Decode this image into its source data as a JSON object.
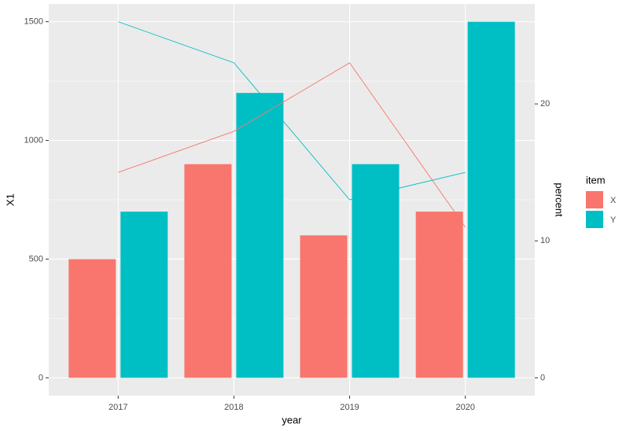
{
  "chart_data": {
    "type": "bar",
    "x_label": "year",
    "y_label": "X1",
    "y2_label": "percent",
    "legend_title": "item",
    "categories": [
      "2017",
      "2018",
      "2019",
      "2020"
    ],
    "series": [
      {
        "name": "X",
        "color": "#F8766D",
        "values": [
          500,
          900,
          600,
          700
        ]
      },
      {
        "name": "Y",
        "color": "#00BFC4",
        "values": [
          700,
          1200,
          900,
          1500
        ]
      }
    ],
    "lines": [
      {
        "type": "line",
        "axis": "y2",
        "color": "#F8766D",
        "values": [
          15,
          18,
          23,
          11
        ]
      },
      {
        "type": "line",
        "axis": "y2",
        "color": "#00BFC4",
        "values": [
          26,
          23,
          13,
          15
        ]
      }
    ],
    "ylim": [
      -75,
      1575
    ],
    "yticks": [
      0,
      500,
      1000,
      1500
    ],
    "y2lim": [
      -1.3,
      27.3
    ],
    "y2ticks": [
      0,
      10,
      20
    ],
    "grid": true
  }
}
